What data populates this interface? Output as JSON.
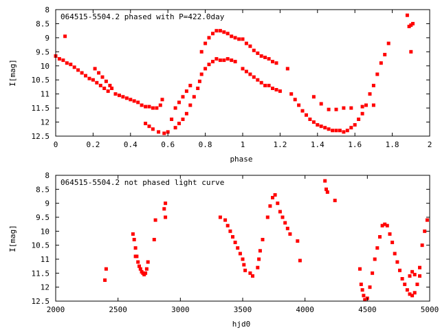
{
  "chart_data": [
    {
      "type": "scatter",
      "title": "064515-5504.2 phased with P=422.0day",
      "xlabel": "phase",
      "ylabel": "I[mag]",
      "xlim": [
        0,
        2
      ],
      "ylim": [
        8,
        12.5
      ],
      "y_inverted": true,
      "xticks": [
        "0",
        "0.2",
        "0.4",
        "0.6",
        "0.8",
        "1",
        "1.2",
        "1.4",
        "1.6",
        "1.8",
        "2"
      ],
      "yticks": [
        "8",
        "8.5",
        "9",
        "9.5",
        "10",
        "10.5",
        "11",
        "11.5",
        "12",
        "12.5"
      ],
      "marker_color": "#ff0000",
      "marker": "filled-square",
      "series": [
        {
          "points": [
            [
              0.0,
              9.65
            ],
            [
              0.02,
              9.75
            ],
            [
              0.04,
              9.8
            ],
            [
              0.05,
              8.95
            ],
            [
              0.06,
              9.9
            ],
            [
              0.08,
              9.95
            ],
            [
              0.1,
              10.05
            ],
            [
              0.12,
              10.15
            ],
            [
              0.14,
              10.25
            ],
            [
              0.16,
              10.35
            ],
            [
              0.18,
              10.45
            ],
            [
              0.2,
              10.5
            ],
            [
              0.21,
              10.1
            ],
            [
              0.23,
              10.25
            ],
            [
              0.25,
              10.4
            ],
            [
              0.27,
              10.55
            ],
            [
              0.29,
              10.7
            ],
            [
              0.3,
              10.8
            ],
            [
              0.22,
              10.6
            ],
            [
              0.24,
              10.7
            ],
            [
              0.26,
              10.8
            ],
            [
              0.28,
              10.9
            ],
            [
              0.32,
              11.0
            ],
            [
              0.34,
              11.05
            ],
            [
              0.36,
              11.1
            ],
            [
              0.38,
              11.15
            ],
            [
              0.4,
              11.2
            ],
            [
              0.42,
              11.25
            ],
            [
              0.44,
              11.3
            ],
            [
              0.46,
              11.4
            ],
            [
              0.48,
              11.45
            ],
            [
              0.5,
              11.45
            ],
            [
              0.52,
              11.5
            ],
            [
              0.54,
              11.5
            ],
            [
              0.56,
              11.4
            ],
            [
              0.57,
              11.2
            ],
            [
              0.48,
              12.05
            ],
            [
              0.5,
              12.15
            ],
            [
              0.52,
              12.25
            ],
            [
              0.55,
              12.35
            ],
            [
              0.58,
              12.4
            ],
            [
              0.6,
              12.35
            ],
            [
              0.62,
              11.9
            ],
            [
              0.64,
              11.5
            ],
            [
              0.66,
              11.3
            ],
            [
              0.68,
              11.1
            ],
            [
              0.7,
              10.9
            ],
            [
              0.72,
              10.7
            ],
            [
              0.64,
              12.2
            ],
            [
              0.66,
              12.05
            ],
            [
              0.68,
              11.9
            ],
            [
              0.7,
              11.7
            ],
            [
              0.72,
              11.4
            ],
            [
              0.74,
              11.1
            ],
            [
              0.76,
              10.8
            ],
            [
              0.77,
              10.55
            ],
            [
              0.78,
              10.3
            ],
            [
              0.8,
              10.1
            ],
            [
              0.82,
              9.95
            ],
            [
              0.84,
              9.85
            ],
            [
              0.78,
              9.5
            ],
            [
              0.8,
              9.2
            ],
            [
              0.82,
              9.0
            ],
            [
              0.84,
              8.85
            ],
            [
              0.86,
              8.75
            ],
            [
              0.88,
              8.75
            ],
            [
              0.9,
              8.8
            ],
            [
              0.92,
              8.85
            ],
            [
              0.94,
              8.95
            ],
            [
              0.96,
              9.0
            ],
            [
              0.98,
              9.05
            ],
            [
              0.86,
              9.75
            ],
            [
              0.88,
              9.8
            ],
            [
              0.9,
              9.8
            ],
            [
              0.92,
              9.75
            ],
            [
              0.94,
              9.8
            ],
            [
              0.96,
              9.85
            ],
            [
              1.0,
              9.05
            ],
            [
              1.02,
              9.2
            ],
            [
              1.04,
              9.3
            ],
            [
              1.06,
              9.45
            ],
            [
              1.08,
              9.55
            ],
            [
              1.1,
              9.65
            ],
            [
              1.12,
              9.7
            ],
            [
              1.14,
              9.75
            ],
            [
              1.16,
              9.85
            ],
            [
              1.18,
              9.9
            ],
            [
              1.0,
              10.1
            ],
            [
              1.02,
              10.2
            ],
            [
              1.04,
              10.3
            ],
            [
              1.06,
              10.4
            ],
            [
              1.08,
              10.5
            ],
            [
              1.1,
              10.6
            ],
            [
              1.12,
              10.7
            ],
            [
              1.14,
              10.7
            ],
            [
              1.16,
              10.8
            ],
            [
              1.18,
              10.85
            ],
            [
              1.2,
              10.9
            ],
            [
              1.24,
              10.1
            ],
            [
              1.26,
              11.0
            ],
            [
              1.28,
              11.2
            ],
            [
              1.3,
              11.4
            ],
            [
              1.32,
              11.6
            ],
            [
              1.34,
              11.75
            ],
            [
              1.36,
              11.9
            ],
            [
              1.38,
              12.0
            ],
            [
              1.4,
              12.1
            ],
            [
              1.42,
              12.15
            ],
            [
              1.44,
              12.2
            ],
            [
              1.46,
              12.25
            ],
            [
              1.48,
              12.3
            ],
            [
              1.5,
              12.3
            ],
            [
              1.52,
              12.3
            ],
            [
              1.54,
              12.35
            ],
            [
              1.56,
              12.3
            ],
            [
              1.58,
              12.2
            ],
            [
              1.6,
              12.1
            ],
            [
              1.62,
              11.9
            ],
            [
              1.64,
              11.7
            ],
            [
              1.66,
              11.4
            ],
            [
              1.68,
              11.0
            ],
            [
              1.7,
              10.7
            ],
            [
              1.72,
              10.3
            ],
            [
              1.74,
              9.9
            ],
            [
              1.76,
              9.6
            ],
            [
              1.78,
              9.2
            ],
            [
              1.38,
              11.1
            ],
            [
              1.42,
              11.35
            ],
            [
              1.46,
              11.55
            ],
            [
              1.5,
              11.55
            ],
            [
              1.54,
              11.5
            ],
            [
              1.58,
              11.5
            ],
            [
              1.64,
              11.45
            ],
            [
              1.7,
              11.4
            ],
            [
              1.88,
              8.2
            ],
            [
              1.89,
              8.6
            ],
            [
              1.9,
              8.55
            ],
            [
              1.91,
              8.5
            ],
            [
              1.9,
              9.5
            ]
          ]
        }
      ]
    },
    {
      "type": "scatter",
      "title": "064515-5504.2 not phased light curve",
      "xlabel": "hjd0",
      "ylabel": "I[mag]",
      "xlim": [
        2000,
        5000
      ],
      "ylim": [
        8,
        12.5
      ],
      "y_inverted": true,
      "xticks": [
        "2000",
        "2500",
        "3000",
        "3500",
        "4000",
        "4500",
        "5000"
      ],
      "yticks": [
        "8",
        "8.5",
        "9",
        "9.5",
        "10",
        "10.5",
        "11",
        "11.5",
        "12",
        "12.5"
      ],
      "marker_color": "#ff0000",
      "marker": "filled-square",
      "series": [
        {
          "points": [
            [
              2395,
              11.75
            ],
            [
              2405,
              11.35
            ],
            [
              2620,
              10.1
            ],
            [
              2630,
              10.3
            ],
            [
              2640,
              10.6
            ],
            [
              2650,
              10.9
            ],
            [
              2660,
              11.1
            ],
            [
              2670,
              11.25
            ],
            [
              2680,
              11.35
            ],
            [
              2690,
              11.45
            ],
            [
              2700,
              11.5
            ],
            [
              2710,
              11.55
            ],
            [
              2720,
              11.5
            ],
            [
              2730,
              11.35
            ],
            [
              2740,
              11.1
            ],
            [
              2640,
              10.9
            ],
            [
              2790,
              10.3
            ],
            [
              2800,
              9.6
            ],
            [
              2870,
              9.2
            ],
            [
              2880,
              9.0
            ],
            [
              2880,
              9.5
            ],
            [
              3320,
              9.5
            ],
            [
              3360,
              9.6
            ],
            [
              3380,
              9.8
            ],
            [
              3400,
              10.0
            ],
            [
              3420,
              10.2
            ],
            [
              3440,
              10.4
            ],
            [
              3460,
              10.6
            ],
            [
              3480,
              10.8
            ],
            [
              3500,
              11.0
            ],
            [
              3510,
              11.2
            ],
            [
              3520,
              11.4
            ],
            [
              3560,
              11.5
            ],
            [
              3580,
              11.6
            ],
            [
              3620,
              11.3
            ],
            [
              3630,
              11.0
            ],
            [
              3640,
              10.7
            ],
            [
              3660,
              10.3
            ],
            [
              3700,
              9.5
            ],
            [
              3720,
              9.1
            ],
            [
              3740,
              8.8
            ],
            [
              3760,
              8.7
            ],
            [
              3780,
              9.0
            ],
            [
              3800,
              9.3
            ],
            [
              3820,
              9.5
            ],
            [
              3840,
              9.7
            ],
            [
              3860,
              9.9
            ],
            [
              3880,
              10.1
            ],
            [
              3940,
              10.35
            ],
            [
              3960,
              11.05
            ],
            [
              4160,
              8.2
            ],
            [
              4170,
              8.5
            ],
            [
              4180,
              8.6
            ],
            [
              4240,
              8.9
            ],
            [
              4440,
              11.35
            ],
            [
              4450,
              11.9
            ],
            [
              4460,
              12.1
            ],
            [
              4470,
              12.3
            ],
            [
              4480,
              12.45
            ],
            [
              4500,
              12.4
            ],
            [
              4520,
              12.0
            ],
            [
              4540,
              11.5
            ],
            [
              4560,
              11.0
            ],
            [
              4580,
              10.6
            ],
            [
              4600,
              10.2
            ],
            [
              4620,
              9.8
            ],
            [
              4640,
              9.75
            ],
            [
              4660,
              9.8
            ],
            [
              4680,
              10.1
            ],
            [
              4700,
              10.4
            ],
            [
              4720,
              10.8
            ],
            [
              4740,
              11.1
            ],
            [
              4760,
              11.4
            ],
            [
              4780,
              11.7
            ],
            [
              4800,
              11.9
            ],
            [
              4820,
              12.1
            ],
            [
              4840,
              12.25
            ],
            [
              4860,
              12.3
            ],
            [
              4880,
              12.2
            ],
            [
              4900,
              11.9
            ],
            [
              4920,
              11.3
            ],
            [
              4940,
              10.5
            ],
            [
              4960,
              10.0
            ],
            [
              4980,
              9.6
            ],
            [
              4840,
              11.6
            ],
            [
              4880,
              11.55
            ],
            [
              4920,
              11.6
            ],
            [
              4860,
              11.45
            ]
          ]
        }
      ]
    }
  ]
}
